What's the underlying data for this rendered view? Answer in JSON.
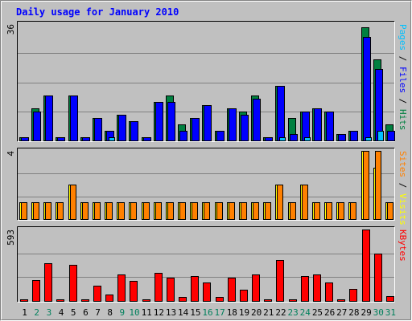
{
  "chart_data": {
    "type": "bar",
    "title": "Daily usage for January 2010",
    "days": [
      "1",
      "2",
      "3",
      "4",
      "5",
      "6",
      "7",
      "8",
      "9",
      "10",
      "11",
      "12",
      "13",
      "14",
      "15",
      "16",
      "17",
      "18",
      "19",
      "20",
      "21",
      "22",
      "23",
      "24",
      "25",
      "26",
      "27",
      "28",
      "29",
      "30",
      "31"
    ],
    "weekend_days": [
      2,
      3,
      9,
      10,
      16,
      17,
      23,
      24,
      30,
      31
    ],
    "colors": {
      "background": "#c0c0c0",
      "hits": "#008040",
      "files": "#0000ff",
      "pages": "#00c0ff",
      "visits": "#ffff00",
      "sites": "#ff8000",
      "kbytes": "#ff0000",
      "title": "#0000ff",
      "weekday_label": "#000000",
      "weekend_label": "#00805c"
    },
    "panels": [
      {
        "id": "requests",
        "scale_max_label": "36",
        "scale_max": 36,
        "legend": [
          {
            "name": "Pages",
            "color": "#00c0ff"
          },
          {
            "sep": " / "
          },
          {
            "name": "Files",
            "color": "#0000ff"
          },
          {
            "sep": " / "
          },
          {
            "name": "Hits",
            "color": "#008040"
          }
        ],
        "series": [
          {
            "name": "Hits",
            "color": "#008040",
            "values": [
              1,
              10,
              14,
              1,
              14,
              1,
              7,
              3,
              8,
              6,
              1,
              12,
              14,
              5,
              7,
              11,
              3,
              10,
              9,
              14,
              1,
              17,
              7,
              9,
              10,
              9,
              2,
              3,
              35,
              25,
              5
            ]
          },
          {
            "name": "Files",
            "color": "#0000ff",
            "values": [
              1,
              9,
              14,
              1,
              14,
              1,
              7,
              3,
              8,
              6,
              1,
              12,
              12,
              3,
              7,
              11,
              3,
              10,
              8,
              13,
              1,
              17,
              2,
              9,
              10,
              9,
              2,
              3,
              32,
              22,
              3
            ]
          },
          {
            "name": "Pages",
            "color": "#00c0ff",
            "values": [
              0,
              0,
              0,
              0,
              0,
              0,
              0,
              1,
              0,
              0,
              0,
              0,
              0,
              0,
              0,
              0,
              0,
              0,
              0,
              0,
              0,
              1,
              0,
              1,
              0,
              0,
              0,
              0,
              1,
              3,
              0
            ]
          }
        ]
      },
      {
        "id": "visits",
        "scale_max_label": "4",
        "scale_max": 4,
        "legend": [
          {
            "name": "Sites",
            "color": "#ff8000"
          },
          {
            "sep": " / "
          },
          {
            "name": "Visits",
            "color": "#ffff00"
          }
        ],
        "series": [
          {
            "name": "Visits",
            "color": "#ffff00",
            "values": [
              1,
              1,
              1,
              1,
              2,
              1,
              1,
              1,
              1,
              1,
              1,
              1,
              1,
              1,
              1,
              1,
              1,
              1,
              1,
              1,
              1,
              2,
              1,
              2,
              1,
              1,
              1,
              1,
              4,
              3,
              1
            ]
          },
          {
            "name": "Sites",
            "color": "#ff8000",
            "values": [
              1,
              1,
              1,
              1,
              2,
              1,
              1,
              1,
              1,
              1,
              1,
              1,
              1,
              1,
              1,
              1,
              1,
              1,
              1,
              1,
              1,
              2,
              1,
              2,
              1,
              1,
              1,
              1,
              4,
              4,
              1
            ]
          }
        ]
      },
      {
        "id": "kbytes",
        "scale_max_label": "593",
        "scale_max": 593,
        "legend": [
          {
            "name": "KBytes",
            "color": "#ff0000"
          }
        ],
        "series": [
          {
            "name": "KBytes",
            "color": "#ff0000",
            "values": [
              12,
              170,
              310,
              12,
              300,
              12,
              125,
              50,
              220,
              165,
              12,
              230,
              190,
              30,
              205,
              150,
              30,
              190,
              95,
              220,
              12,
              340,
              15,
              205,
              220,
              150,
              12,
              100,
              593,
              390,
              40
            ]
          }
        ]
      }
    ]
  }
}
